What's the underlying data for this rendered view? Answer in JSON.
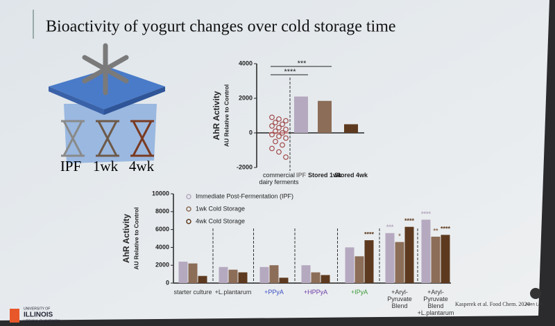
{
  "slide": {
    "title": "Bioactivity of yogurt changes over cold storage time",
    "illustration_labels": [
      "IPF",
      "1wk",
      "4wk"
    ],
    "logo": {
      "line1": "UNIVERSITY OF",
      "line2": "ILLINOIS",
      "line3": "URBANA-CHAMPAIGN"
    },
    "citation": "Kasperek et al. Food Chem. 2024",
    "lab": "Allen Lab"
  },
  "chart_data": [
    {
      "type": "bar",
      "ylabel": "AhR Activity",
      "ylabel2": "AU Relative to Control",
      "categories": [
        "commercial dairy ferments",
        "IPF",
        "Stored 1wk",
        "Stored 4wk"
      ],
      "values": [
        0,
        2100,
        1850,
        500
      ],
      "colors": [
        "#c98a8a",
        "#b5a9c0",
        "#8c6d58",
        "#5d3a1f"
      ],
      "points": [
        900,
        800,
        700,
        600,
        500,
        400,
        300,
        200,
        100,
        0,
        -100,
        -200,
        -300,
        -500,
        -700,
        -900,
        -1100,
        -1400
      ],
      "comparisons": [
        {
          "label": "***",
          "to": "Stored 1wk"
        },
        {
          "label": "****",
          "to": "IPF"
        }
      ],
      "ylim": [
        -2000,
        4000
      ],
      "yticks": [
        -2000,
        0,
        2000,
        4000
      ]
    },
    {
      "type": "grouped_bar",
      "ylabel": "AhR Activity",
      "ylabel2": "AU Relative to Control",
      "categories": [
        "starter culture",
        "+L.plantarum",
        "+PPyA",
        "+HPPyA",
        "+IPyA",
        "+Aryl-Pyruvate Blend",
        "+Aryl-Pyruvate Blend +L.plantarum"
      ],
      "label_colors": [
        "#333333",
        "#333333",
        "#3a4fc4",
        "#6a3aa8",
        "#3a9a3a",
        "#333333",
        "#333333"
      ],
      "series": [
        {
          "name": "Immediate Post-Fermentation (IPF)",
          "color": "#b5a9c0",
          "values": [
            2400,
            1800,
            1800,
            2000,
            4000,
            5600,
            7100
          ],
          "significance": [
            null,
            null,
            null,
            null,
            null,
            "***",
            "****"
          ]
        },
        {
          "name": "1wk Cold Storage",
          "color": "#8c6d58",
          "values": [
            2200,
            1500,
            2000,
            1200,
            3000,
            4600,
            5200
          ],
          "significance": [
            null,
            null,
            null,
            null,
            null,
            "*",
            "**"
          ]
        },
        {
          "name": "4wk Cold Storage",
          "color": "#5d3a1f",
          "values": [
            800,
            1200,
            600,
            900,
            4800,
            6300,
            5400
          ],
          "significance": [
            null,
            null,
            null,
            null,
            "****",
            "****",
            "****"
          ]
        }
      ],
      "ylim": [
        0,
        10000
      ],
      "yticks": [
        0,
        2000,
        4000,
        6000,
        8000,
        10000
      ]
    }
  ]
}
